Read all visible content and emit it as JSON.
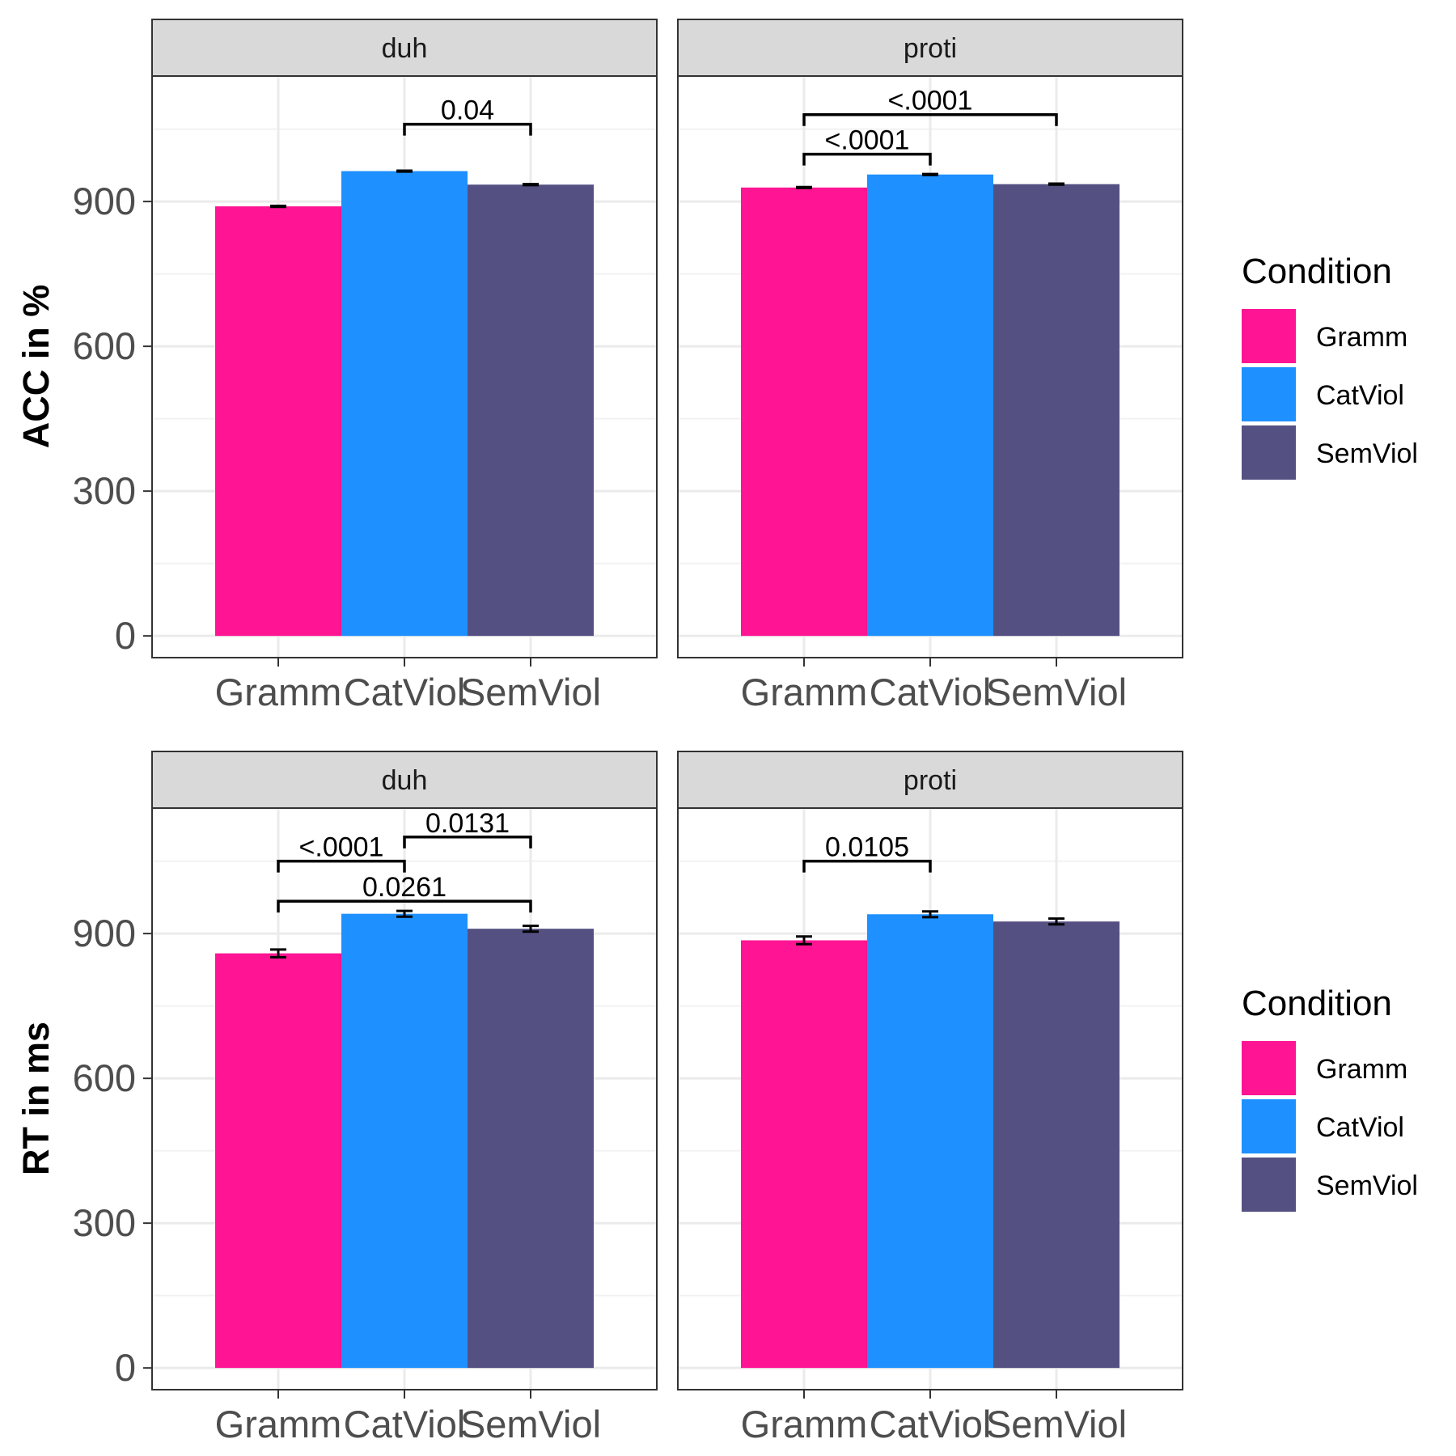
{
  "chart_data": {
    "type": "bar",
    "categories": [
      "Gramm",
      "CatViol",
      "SemViol"
    ],
    "colors": {
      "Gramm": "#ff1493",
      "CatViol": "#1e90ff",
      "SemViol": "#545082"
    },
    "facets": [
      "duh",
      "proti"
    ],
    "legend": {
      "title": "Condition",
      "labels": [
        "Gramm",
        "CatViol",
        "SemViol"
      ],
      "position": "right"
    },
    "ylim": [
      -45,
      1160
    ],
    "yticks": [
      0,
      300,
      600,
      900
    ],
    "grid": true,
    "rows": [
      {
        "ylabel": "ACC in %",
        "panels": [
          {
            "facet": "duh",
            "values": [
              890,
              963,
              935
            ],
            "errors": [
              1,
              1,
              1
            ],
            "comparisons": [
              {
                "from": "CatViol",
                "to": "SemViol",
                "label": "0.04",
                "y": 1060
              }
            ]
          },
          {
            "facet": "proti",
            "values": [
              929,
              956,
              936
            ],
            "errors": [
              1,
              1,
              1
            ],
            "comparisons": [
              {
                "from": "Gramm",
                "to": "SemViol",
                "label": "<.0001",
                "y": 1080
              },
              {
                "from": "Gramm",
                "to": "CatViol",
                "label": "<.0001",
                "y": 998
              }
            ]
          }
        ]
      },
      {
        "ylabel": "RT in ms",
        "panels": [
          {
            "facet": "duh",
            "values": [
              859,
              941,
              910
            ],
            "errors": [
              8,
              6,
              6
            ],
            "comparisons": [
              {
                "from": "Gramm",
                "to": "CatViol",
                "label": "<.0001",
                "y": 1050
              },
              {
                "from": "CatViol",
                "to": "SemViol",
                "label": "0.0131",
                "y": 1100
              },
              {
                "from": "Gramm",
                "to": "SemViol",
                "label": "0.0261",
                "y": 967
              }
            ]
          },
          {
            "facet": "proti",
            "values": [
              886,
              940,
              925
            ],
            "errors": [
              8,
              6,
              6
            ],
            "comparisons": [
              {
                "from": "Gramm",
                "to": "CatViol",
                "label": "0.0105",
                "y": 1050
              }
            ]
          }
        ]
      }
    ]
  }
}
